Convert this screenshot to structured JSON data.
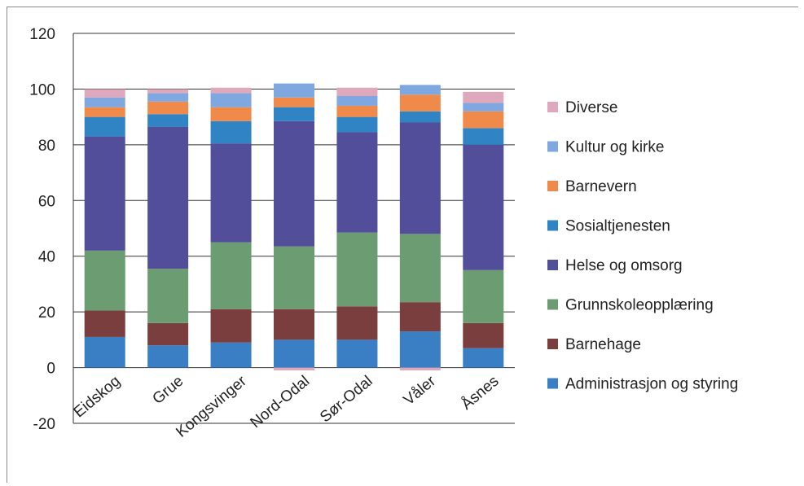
{
  "chart_data": {
    "type": "bar",
    "stacked": true,
    "title": "",
    "xlabel": "",
    "ylabel": "",
    "ylim": [
      -20,
      120
    ],
    "yticks": [
      -20,
      0,
      20,
      40,
      60,
      80,
      100,
      120
    ],
    "grid": true,
    "legend_position": "right",
    "categories": [
      "Eidskog",
      "Grue",
      "Kongsvinger",
      "Nord-Odal",
      "Sør-Odal",
      "Våler",
      "Åsnes"
    ],
    "series": [
      {
        "name": "Administrasjon og styring",
        "color": "#3a7fc3",
        "values": [
          11,
          8,
          9,
          10,
          10,
          13,
          7
        ]
      },
      {
        "name": "Barnehage",
        "color": "#7a3e3e",
        "values": [
          9.5,
          8,
          12,
          11,
          12,
          10.5,
          9
        ]
      },
      {
        "name": "Grunnskoleopplæring",
        "color": "#6c9d72",
        "values": [
          21.5,
          19.5,
          24,
          22.5,
          26.5,
          24.5,
          19
        ]
      },
      {
        "name": "Helse og omsorg",
        "color": "#524e9a",
        "values": [
          41,
          51,
          35.5,
          45,
          36,
          40,
          45
        ]
      },
      {
        "name": "Sosialtjenesten",
        "color": "#3084c4",
        "values": [
          7,
          4.5,
          8,
          5,
          5.5,
          4,
          6
        ]
      },
      {
        "name": "Barnevern",
        "color": "#f08a4b",
        "values": [
          3.5,
          4.5,
          5,
          3.5,
          4,
          6,
          6
        ]
      },
      {
        "name": "Kultur og kirke",
        "color": "#7fa8e0",
        "values": [
          3.5,
          3,
          5,
          5,
          3.5,
          3.5,
          3
        ]
      },
      {
        "name": "Diverse",
        "color": "#dea8bd",
        "values": [
          3,
          1.5,
          2,
          -1,
          3,
          -1,
          4
        ]
      }
    ]
  }
}
